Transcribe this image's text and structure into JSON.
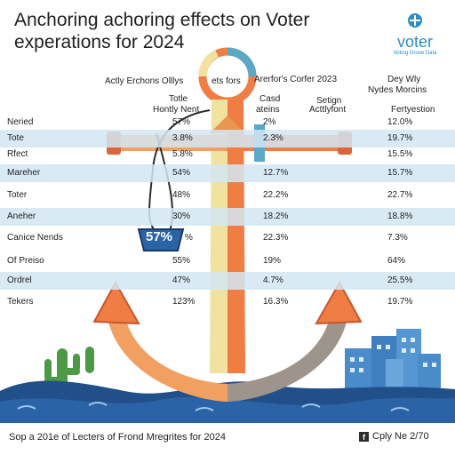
{
  "title": {
    "line1": "Anchoring achoring effects on Voter",
    "line2": "experations for 2024"
  },
  "brand": {
    "word": "voter",
    "tagline": "Voting Grove Data"
  },
  "table": {
    "header_top": {
      "col1": "Actly Erchons Olllys",
      "col1b": "ets fors",
      "col2": "Arerfor's Corfer 2023",
      "col3_line1": "Dey Wly",
      "col3_line2": "Nydes Morcins"
    },
    "header_sub": {
      "col1_line1": "Totle",
      "col1_line2": "Hontly Nent",
      "col2a_line1": "Casd",
      "col2a_line2": "ateins",
      "col2b_line1": "Setign",
      "col2b_line2": "Acttlyfont",
      "col3": "Fertyestion"
    },
    "rows": [
      {
        "label": "Neried",
        "v1": "57%",
        "v2": "2%",
        "v3": "12.0%",
        "shaded": false
      },
      {
        "label": "Tote",
        "v1": "3.8%",
        "v2": "2.3%",
        "v3": "19.7%",
        "shaded": true
      },
      {
        "label": "Rfect",
        "v1": "5.8%",
        "v2": "",
        "v3": "15.5%",
        "shaded": false
      },
      {
        "label": "Mareher",
        "v1": "54%",
        "v2": "12.7%",
        "v3": "15.7%",
        "shaded": true
      },
      {
        "label": "Toter",
        "v1": "48%",
        "v2": "22.2%",
        "v3": "22.7%",
        "shaded": false
      },
      {
        "label": "Aneher",
        "v1": "30%",
        "v2": "18.2%",
        "v3": "18.8%",
        "shaded": true
      },
      {
        "label": "Canice Nends",
        "v1": "%",
        "v2": "22.3%",
        "v3": "7.3%",
        "shaded": false
      },
      {
        "label": "Of Preiso",
        "v1": "55%",
        "v2": "19%",
        "v3": "64%",
        "shaded": false
      },
      {
        "label": "Ordrel",
        "v1": "47%",
        "v2": "4.7%",
        "v3": "25.5%",
        "shaded": true
      },
      {
        "label": "Tekers",
        "v1": "123%",
        "v2": "16.3%",
        "v3": "19.7%",
        "shaded": false
      }
    ]
  },
  "badge": {
    "value": "57%"
  },
  "footer": {
    "left": "Sop a 201e of Lecters of Frond Mregrites for 2024",
    "right": "Cply Ne 2/70",
    "icon_letter": "f"
  },
  "colors": {
    "anchor_orange": "#ef7d44",
    "anchor_cream": "#f2e2a0",
    "anchor_blue": "#5aa8c6",
    "band_blue": "#d4e6f3",
    "wave_navy": "#204f8a",
    "brand_blue": "#2a8fc1",
    "cactus_green": "#4d9a46"
  }
}
